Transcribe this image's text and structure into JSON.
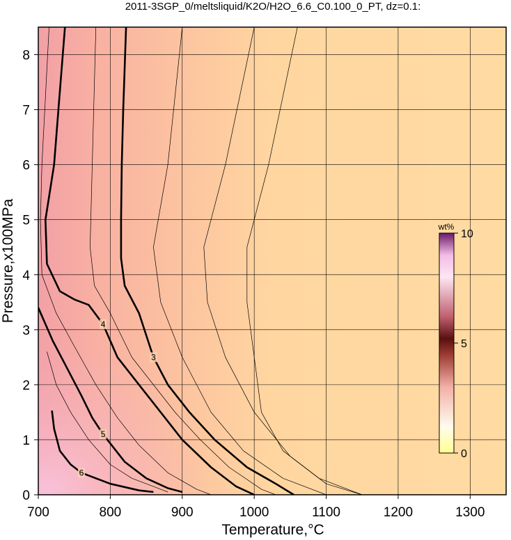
{
  "chart_data": {
    "type": "contour",
    "title": "2011-3SGP_0/meltsliquid/K2O/H2O_6.6_C0.100_0_PT, dz=0.1:",
    "x_label": "Temperature,°C",
    "y_label": "Pressure,x100MPa",
    "xlim": [
      700,
      1350
    ],
    "ylim": [
      0,
      8.5
    ],
    "xticks": [
      700,
      800,
      900,
      1000,
      1100,
      1200,
      1300
    ],
    "yticks": [
      0,
      1,
      2,
      3,
      4,
      5,
      6,
      7,
      8
    ],
    "grid": true,
    "colorbar": {
      "label": "wt%",
      "clim": [
        0,
        10
      ],
      "ticks": [
        0,
        5,
        10
      ]
    },
    "contours": [
      {
        "level": 3,
        "labeled": true,
        "x": [
          822,
          818,
          816,
          815,
          815,
          820,
          840,
          860,
          880,
          910,
          945,
          990,
          1030,
          1055
        ],
        "y": [
          8.5,
          7,
          6,
          5,
          4.3,
          3.8,
          3.3,
          2.5,
          2,
          1.5,
          1,
          0.5,
          0.2,
          0
        ]
      },
      {
        "level": 4,
        "labeled": true,
        "x": [
          737,
          728,
          722,
          710,
          712,
          730,
          750,
          770,
          790,
          810,
          840,
          870,
          900,
          940,
          975,
          1000
        ],
        "y": [
          8.5,
          7,
          6,
          5,
          4.2,
          3.7,
          3.55,
          3.45,
          3.1,
          2.5,
          2,
          1.5,
          1,
          0.5,
          0.15,
          0
        ]
      },
      {
        "level": 5,
        "labeled": true,
        "x": [
          700,
          720,
          740,
          760,
          775,
          790,
          820,
          850,
          880,
          900
        ],
        "y": [
          3.4,
          2.8,
          2.3,
          1.8,
          1.4,
          1.1,
          0.6,
          0.3,
          0.12,
          0.05
        ]
      },
      {
        "level": 6,
        "labeled": true,
        "x": [
          719,
          722,
          730,
          745,
          760,
          800,
          840,
          860
        ],
        "y": [
          1.53,
          1.2,
          0.8,
          0.55,
          0.4,
          0.2,
          0.08,
          0.05
        ]
      },
      {
        "level": 3.5,
        "labeled": false,
        "x": [
          780,
          775,
          772,
          778,
          800,
          830,
          860,
          890,
          925,
          965,
          1010,
          1030
        ],
        "y": [
          8.5,
          6,
          4.5,
          3.8,
          3.3,
          2.5,
          2,
          1.5,
          1,
          0.5,
          0.1,
          0
        ]
      },
      {
        "level": 2.5,
        "labeled": false,
        "x": [
          900,
          880,
          860,
          870,
          900,
          940,
          985,
          1040,
          1100
        ],
        "y": [
          8.5,
          6,
          4.5,
          3.5,
          2.5,
          1.5,
          0.8,
          0.3,
          0
        ]
      },
      {
        "level": 2.2,
        "labeled": false,
        "x": [
          1000,
          960,
          930,
          935,
          960,
          1000,
          1050,
          1100,
          1150
        ],
        "y": [
          8.5,
          6,
          4.5,
          3.5,
          2.5,
          1.5,
          0.7,
          0.2,
          0
        ]
      },
      {
        "level": 2.0,
        "labeled": false,
        "x": [
          1060,
          1020,
          990,
          990,
          1000,
          1010,
          1040,
          1090,
          1150
        ],
        "y": [
          8.5,
          6,
          4.5,
          3.5,
          2.5,
          1.5,
          0.8,
          0.3,
          0
        ]
      },
      {
        "level": 4.5,
        "labeled": false,
        "x": [
          715,
          705,
          703,
          705,
          725,
          750,
          780,
          810,
          840,
          880,
          920,
          940
        ],
        "y": [
          8.5,
          6,
          5,
          4,
          3.3,
          2.7,
          2,
          1.4,
          0.9,
          0.4,
          0.1,
          0
        ]
      },
      {
        "level": 5.5,
        "labeled": false,
        "x": [
          712,
          725,
          745,
          770,
          800,
          830,
          870,
          880
        ],
        "y": [
          2.6,
          2,
          1.5,
          1,
          0.55,
          0.3,
          0.1,
          0.05
        ]
      }
    ]
  }
}
